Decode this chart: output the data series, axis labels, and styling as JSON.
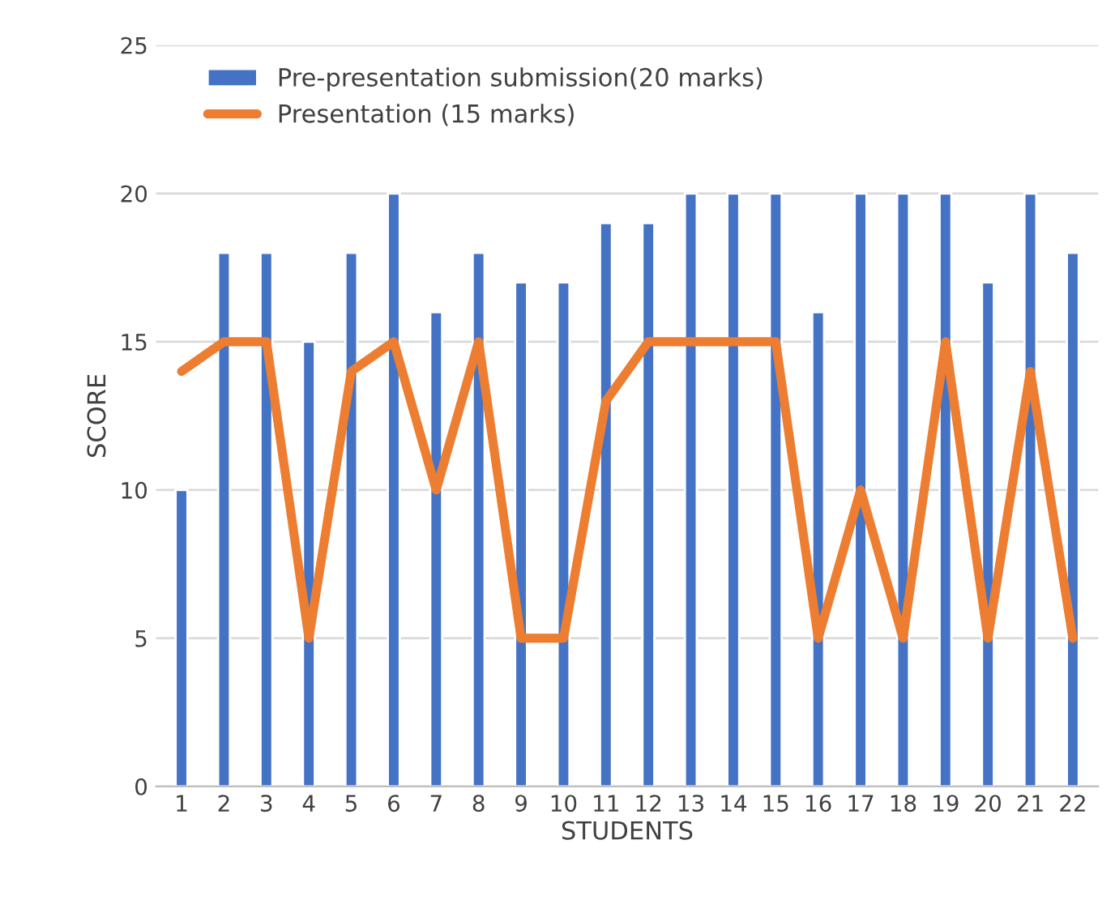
{
  "chart_data": {
    "type": "bar",
    "xlabel": "STUDENTS",
    "ylabel": "SCORE",
    "categories": [
      "1",
      "2",
      "3",
      "4",
      "5",
      "6",
      "7",
      "8",
      "9",
      "10",
      "11",
      "12",
      "13",
      "14",
      "15",
      "16",
      "17",
      "18",
      "19",
      "20",
      "21",
      "22"
    ],
    "series": [
      {
        "name": "Pre-presentation submission(20 marks)",
        "color": "#4472c4",
        "values": [
          10,
          18,
          18,
          15,
          18,
          20,
          16,
          18,
          17,
          17,
          19,
          19,
          20,
          20,
          20,
          16,
          20,
          20,
          20,
          17,
          20,
          18
        ]
      },
      {
        "name": "Presentation (15 marks)",
        "type": "line",
        "color": "#ed7d31",
        "values": [
          14,
          15,
          15,
          5,
          14,
          15,
          10,
          15,
          5,
          5,
          13,
          15,
          15,
          15,
          15,
          5,
          10,
          5,
          15,
          5,
          14,
          5
        ]
      }
    ],
    "ylim": [
      0,
      25
    ],
    "yticks": [
      0,
      5,
      10,
      15,
      20,
      25
    ],
    "grid": "y",
    "legend": "top"
  }
}
